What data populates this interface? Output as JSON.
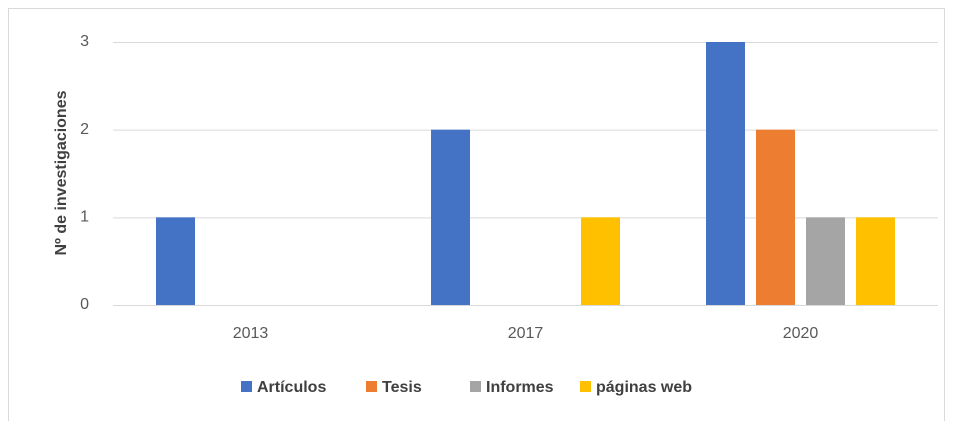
{
  "chart_data": {
    "type": "bar",
    "y_label": "Nº de investigaciones",
    "categories": [
      "2013",
      "2017",
      "2020"
    ],
    "series": [
      {
        "name": "Artículos",
        "color": "#4472c4",
        "values": [
          1,
          2,
          3
        ]
      },
      {
        "name": "Tesis",
        "color": "#ed7d31",
        "values": [
          0,
          0,
          2
        ]
      },
      {
        "name": "Informes",
        "color": "#a5a5a5",
        "values": [
          0,
          0,
          1
        ]
      },
      {
        "name": "páginas web",
        "color": "#ffc000",
        "values": [
          0,
          1,
          1
        ]
      }
    ],
    "ylim": [
      0,
      3
    ],
    "yticks": [
      0,
      1,
      2,
      3
    ],
    "grid": true,
    "legend": "bottom"
  }
}
